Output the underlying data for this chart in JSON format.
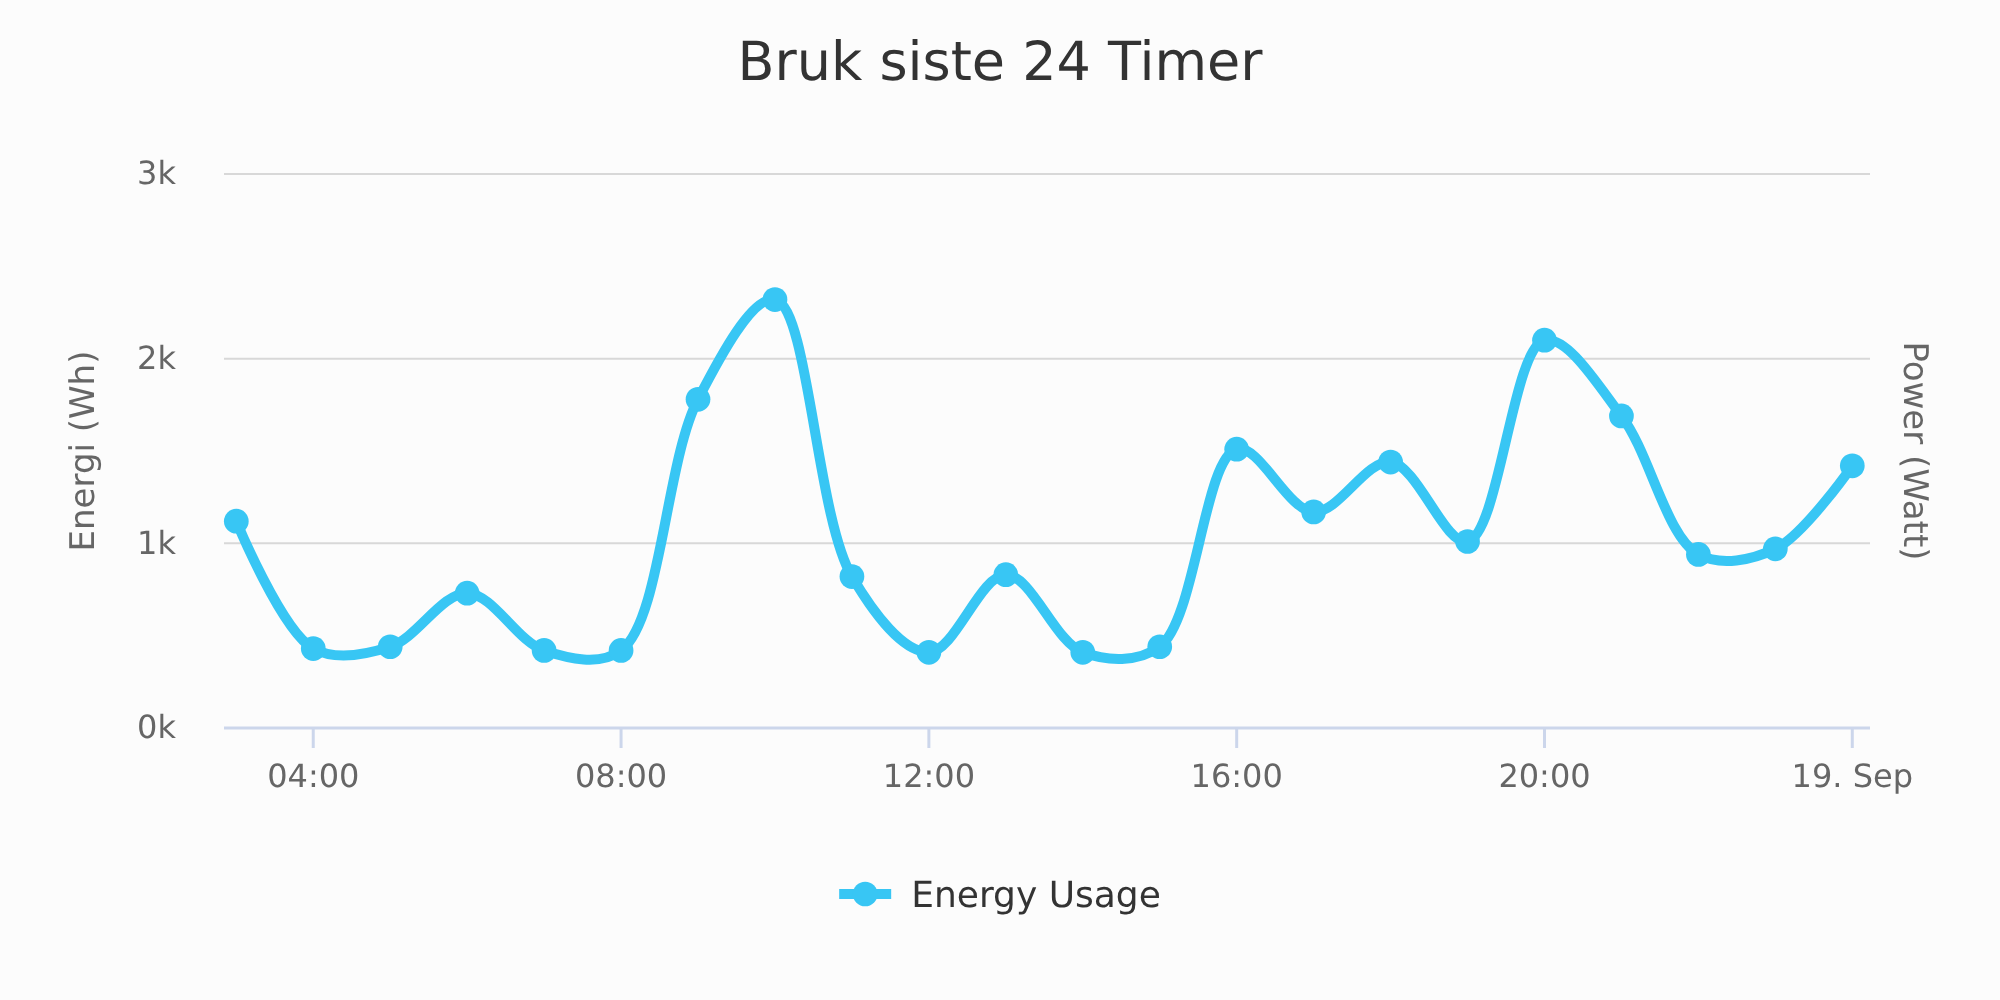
{
  "chart_data": {
    "type": "line",
    "title": "Bruk siste 24 Timer",
    "ylabel": "Energi (Wh)",
    "y2label": "Power (Watt)",
    "x": [
      3,
      4,
      5,
      6,
      7,
      8,
      9,
      10,
      11,
      12,
      13,
      14,
      15,
      16,
      17,
      18,
      19,
      20,
      21,
      22,
      23,
      24
    ],
    "series": [
      {
        "name": "Energy Usage",
        "color": "#38c6f4",
        "values": [
          1120,
          430,
          440,
          730,
          420,
          420,
          1780,
          2320,
          820,
          410,
          830,
          410,
          440,
          1510,
          1170,
          1440,
          1010,
          2100,
          1690,
          940,
          970,
          1420
        ]
      }
    ],
    "xlim": [
      2.84,
      24.23
    ],
    "xticks": [
      {
        "value": 4,
        "label": "04:00"
      },
      {
        "value": 8,
        "label": "08:00"
      },
      {
        "value": 12,
        "label": "12:00"
      },
      {
        "value": 16,
        "label": "16:00"
      },
      {
        "value": 20,
        "label": "20:00"
      },
      {
        "value": 24,
        "label": "19. Sep"
      }
    ],
    "ylim": [
      0,
      3000
    ],
    "yticks": [
      {
        "value": 0,
        "label": "0k"
      },
      {
        "value": 1000,
        "label": "1k"
      },
      {
        "value": 2000,
        "label": "2k"
      },
      {
        "value": 3000,
        "label": "3k"
      }
    ],
    "grid": "y",
    "legend": "bottom",
    "marker": "circle",
    "line_style": "solid"
  }
}
